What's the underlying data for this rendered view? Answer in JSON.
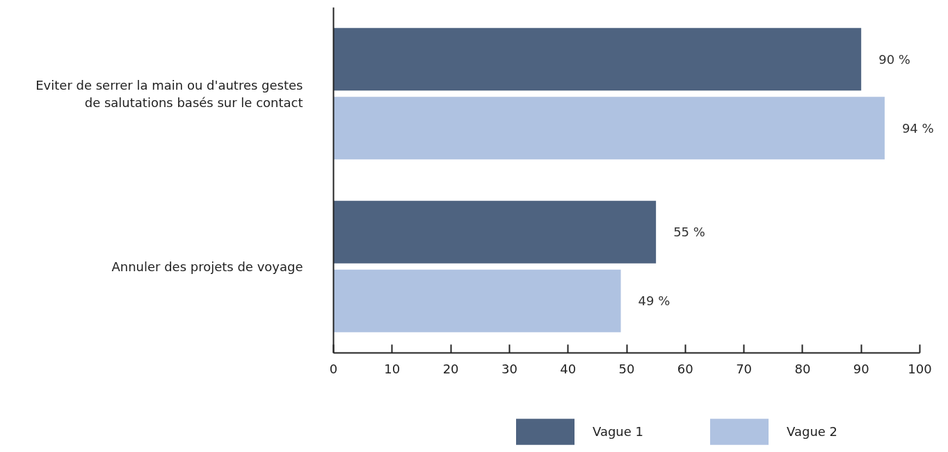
{
  "chart_data": {
    "type": "bar",
    "orientation": "horizontal",
    "categories": [
      "Eviter de serrer la main ou d'autres gestes\nde salutations basés sur le contact",
      "Annuler des projets de voyage"
    ],
    "series": [
      {
        "name": "Vague 1",
        "color": "#4e6380",
        "values": [
          90,
          55
        ],
        "value_labels": [
          "90 %",
          "55 %"
        ]
      },
      {
        "name": "Vague 2",
        "color": "#afc2e1",
        "values": [
          94,
          49
        ],
        "value_labels": [
          "94 %",
          "49 %"
        ]
      }
    ],
    "xlim": [
      0,
      100
    ],
    "xticks": [
      0,
      10,
      20,
      30,
      40,
      50,
      60,
      70,
      80,
      90,
      100
    ],
    "grid": false,
    "legend": "bottom"
  }
}
